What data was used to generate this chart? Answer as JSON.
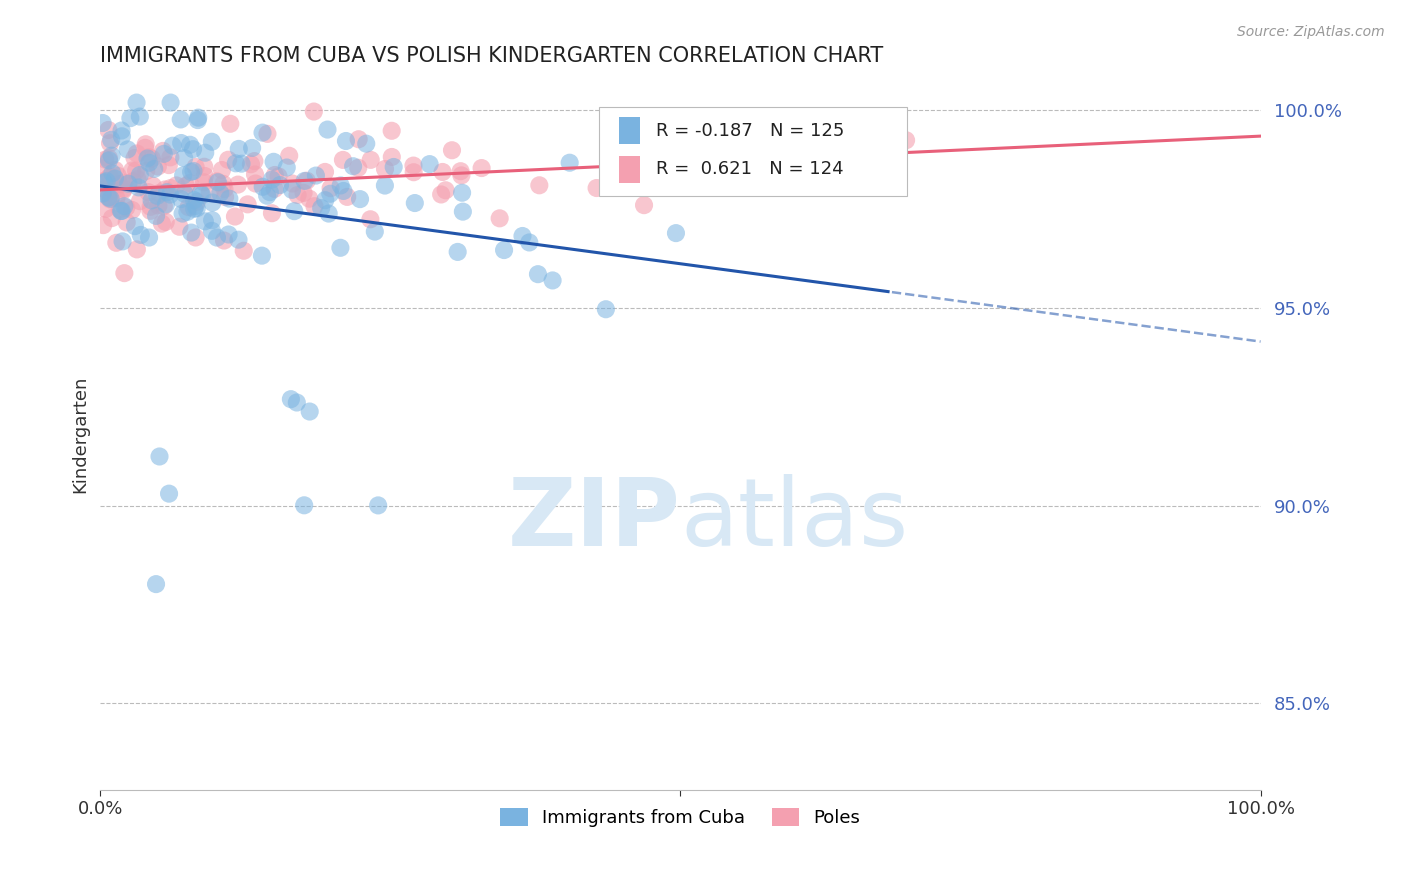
{
  "title": "IMMIGRANTS FROM CUBA VS POLISH KINDERGARTEN CORRELATION CHART",
  "source": "Source: ZipAtlas.com",
  "ylabel": "Kindergarten",
  "ytick_labels": [
    "100.0%",
    "95.0%",
    "90.0%",
    "85.0%"
  ],
  "ytick_values": [
    1.0,
    0.95,
    0.9,
    0.85
  ],
  "xlim": [
    0.0,
    1.0
  ],
  "ylim": [
    0.828,
    1.008
  ],
  "legend": {
    "cuba_label": "Immigrants from Cuba",
    "poland_label": "Poles",
    "cuba_R": "-0.187",
    "cuba_N": "125",
    "poland_R": "0.621",
    "poland_N": "124"
  },
  "cuba_color": "#7ab3e0",
  "poland_color": "#f4a0b0",
  "regression_cuba_color": "#2255aa",
  "regression_poland_color": "#e8607a",
  "background_color": "#ffffff",
  "watermark_color": "#d8e8f5",
  "grid_color": "#bbbbbb",
  "title_fontsize": 15,
  "axis_fontsize": 13
}
